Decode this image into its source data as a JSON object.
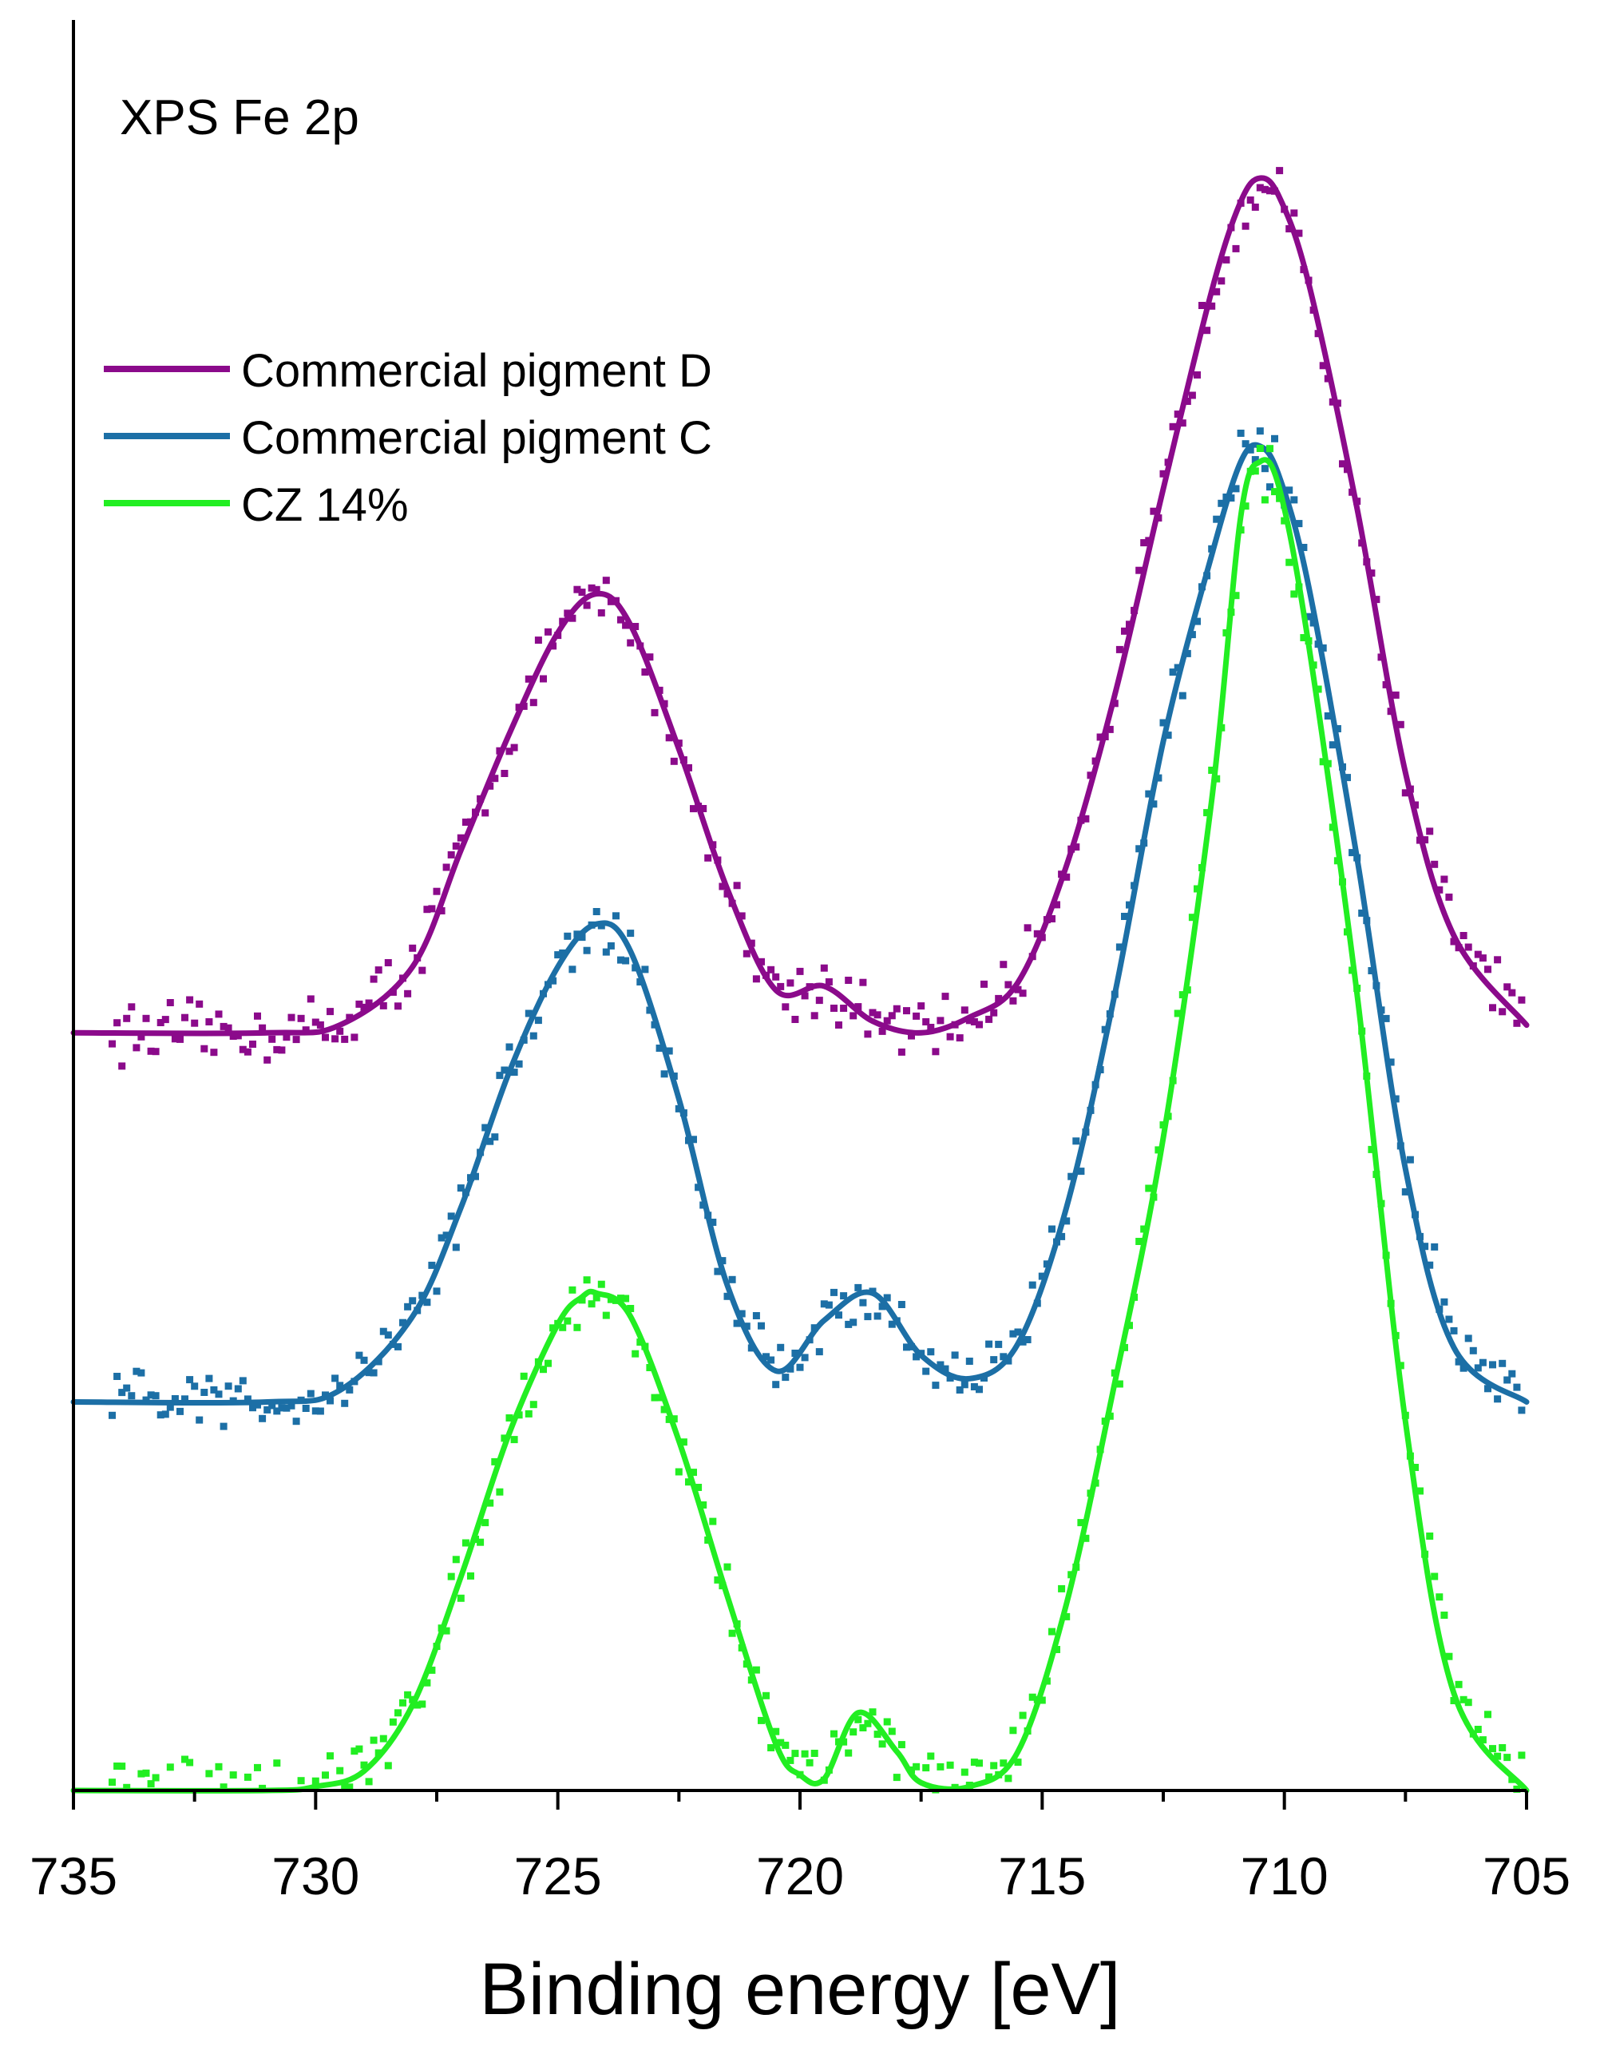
{
  "chart_data": {
    "type": "line",
    "title": "XPS Fe 2p",
    "xlabel": "Binding energy [eV]",
    "ylabel": "",
    "xlim": [
      735,
      705
    ],
    "x_reversed": true,
    "ylim": [
      0,
      4.3
    ],
    "y_ticks_shown": false,
    "xticks": [
      735,
      730,
      725,
      720,
      715,
      710,
      705
    ],
    "xtick_labels": [
      "735",
      "730",
      "725",
      "720",
      "715",
      "710",
      "705"
    ],
    "legend_position": "upper-left",
    "series": [
      {
        "name": "Commercial pigment D",
        "color": "#8B0A8B",
        "baseline": 1.95,
        "noise_start": 735,
        "fit_x": [
          735,
          731,
          729.5,
          728,
          727,
          726,
          725,
          724.2,
          723.5,
          722.5,
          721.5,
          720.5,
          719.5,
          718.5,
          717.5,
          716.5,
          715.5,
          714.5,
          713.5,
          712.5,
          711.5,
          710.9,
          710.5,
          710.1,
          709.5,
          708.5,
          707.5,
          706.5,
          705
        ],
        "fit_y": [
          1.95,
          1.95,
          1.97,
          2.12,
          2.42,
          2.72,
          2.98,
          3.08,
          3.0,
          2.68,
          2.32,
          2.06,
          2.07,
          1.98,
          1.95,
          1.99,
          2.08,
          2.38,
          2.82,
          3.35,
          3.86,
          4.09,
          4.15,
          4.1,
          3.88,
          3.3,
          2.62,
          2.2,
          1.97
        ]
      },
      {
        "name": "Commercial pigment C",
        "color": "#1C6FA6",
        "baseline": 1.0,
        "noise_start": 735,
        "fit_x": [
          735,
          731,
          729.5,
          728,
          727,
          726,
          725,
          724.2,
          723.5,
          722.5,
          721.5,
          720.5,
          719.5,
          718.5,
          717.5,
          716.5,
          715.5,
          714.5,
          713.5,
          712.5,
          711.5,
          710.9,
          710.5,
          710.1,
          709.5,
          708.5,
          707.5,
          706.5,
          705
        ],
        "fit_y": [
          1.0,
          1.0,
          1.03,
          1.22,
          1.5,
          1.85,
          2.12,
          2.23,
          2.16,
          1.78,
          1.3,
          1.08,
          1.21,
          1.28,
          1.12,
          1.06,
          1.15,
          1.5,
          2.05,
          2.7,
          3.18,
          3.42,
          3.46,
          3.38,
          3.1,
          2.4,
          1.6,
          1.14,
          1.0
        ]
      },
      {
        "name": "CZ 14%",
        "color": "#22EE22",
        "baseline": 0.0,
        "noise_start": 735,
        "fit_x": [
          735,
          731,
          730,
          729,
          728,
          727,
          726,
          725,
          724.5,
          724.2,
          723.5,
          722.5,
          721.5,
          720.5,
          720,
          719.5,
          718.8,
          718,
          717.5,
          716.5,
          715.5,
          714.5,
          713.5,
          712.5,
          711.5,
          710.9,
          710.5,
          710.1,
          709.5,
          708.5,
          707.5,
          706.5,
          705
        ],
        "fit_y": [
          0.0,
          0.0,
          0.01,
          0.05,
          0.22,
          0.55,
          0.92,
          1.2,
          1.27,
          1.28,
          1.22,
          0.9,
          0.5,
          0.12,
          0.04,
          0.03,
          0.2,
          0.1,
          0.02,
          0.01,
          0.1,
          0.48,
          1.05,
          1.68,
          2.55,
          3.28,
          3.42,
          3.35,
          2.95,
          2.05,
          0.95,
          0.25,
          0.0
        ]
      }
    ]
  }
}
